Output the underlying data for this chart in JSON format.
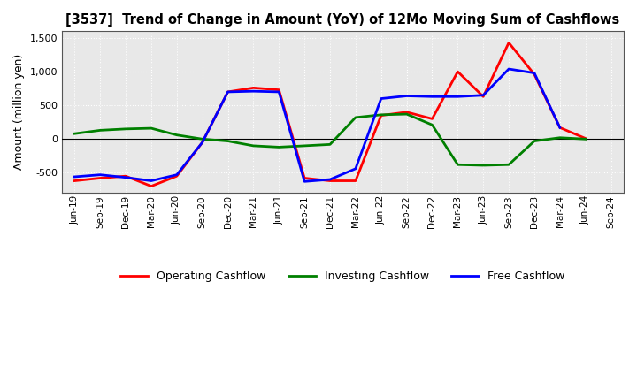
{
  "title": "[3537]  Trend of Change in Amount (YoY) of 12Mo Moving Sum of Cashflows",
  "ylabel": "Amount (million yen)",
  "background_color": "#ffffff",
  "plot_bg_color": "#e8e8e8",
  "grid_color": "#ffffff",
  "x_labels": [
    "Jun-19",
    "Sep-19",
    "Dec-19",
    "Mar-20",
    "Jun-20",
    "Sep-20",
    "Dec-20",
    "Mar-21",
    "Jun-21",
    "Sep-21",
    "Dec-21",
    "Mar-22",
    "Jun-22",
    "Sep-22",
    "Dec-22",
    "Mar-23",
    "Jun-23",
    "Sep-23",
    "Dec-23",
    "Mar-24",
    "Jun-24",
    "Sep-24"
  ],
  "operating": [
    -620,
    -580,
    -550,
    -700,
    -550,
    -50,
    700,
    760,
    730,
    -580,
    -620,
    -620,
    350,
    400,
    300,
    1000,
    630,
    1430,
    960,
    170,
    10,
    null
  ],
  "investing": [
    80,
    130,
    150,
    160,
    60,
    0,
    -30,
    -100,
    -120,
    -100,
    -80,
    320,
    360,
    370,
    210,
    -380,
    -390,
    -380,
    -30,
    20,
    0,
    null
  ],
  "free": [
    -560,
    -530,
    -570,
    -620,
    -530,
    -50,
    700,
    710,
    700,
    -630,
    -600,
    -440,
    600,
    640,
    630,
    630,
    650,
    1040,
    980,
    170,
    null,
    null
  ],
  "ylim": [
    -800,
    1600
  ],
  "yticks": [
    -500,
    0,
    500,
    1000,
    1500
  ],
  "line_colors": {
    "operating": "#ff0000",
    "investing": "#008000",
    "free": "#0000ff"
  },
  "legend_labels": {
    "operating": "Operating Cashflow",
    "investing": "Investing Cashflow",
    "free": "Free Cashflow"
  }
}
